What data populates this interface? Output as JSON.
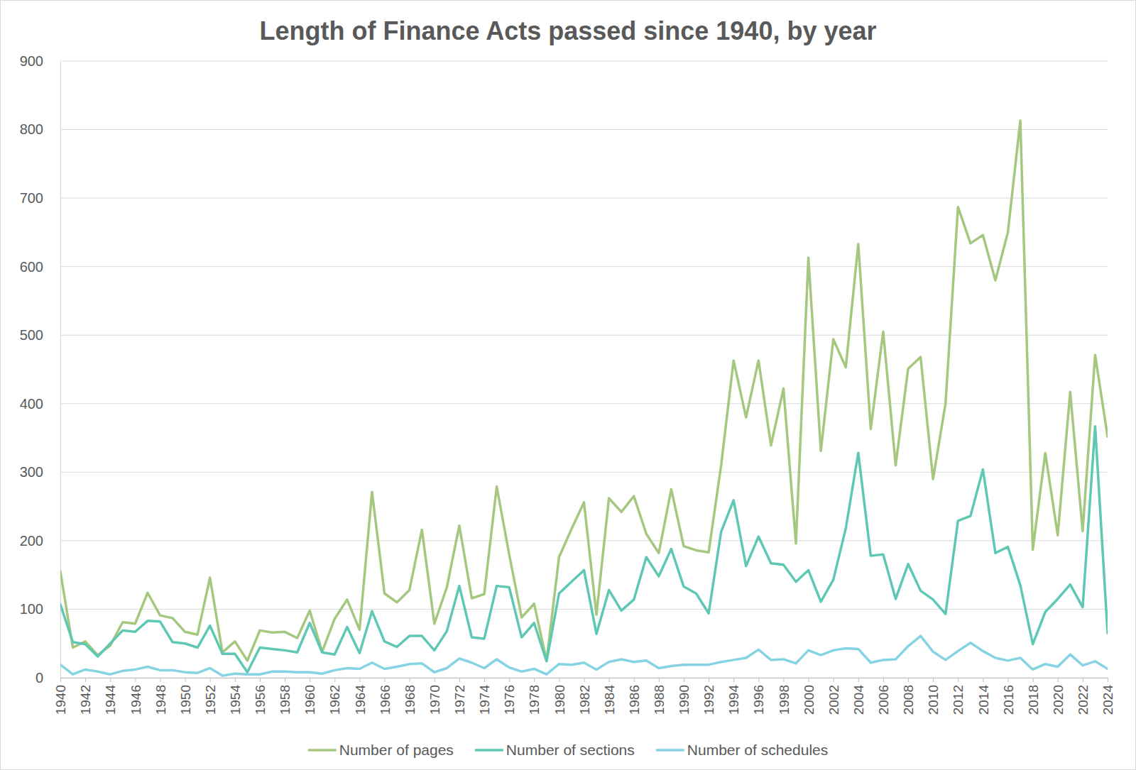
{
  "chart_data": {
    "type": "line",
    "title": "Length of Finance Acts passed since 1940, by year",
    "x": [
      1940,
      1941,
      1942,
      1943,
      1944,
      1945,
      1946,
      1947,
      1948,
      1949,
      1950,
      1951,
      1952,
      1953,
      1954,
      1955,
      1956,
      1957,
      1958,
      1959,
      1960,
      1961,
      1962,
      1963,
      1964,
      1965,
      1966,
      1967,
      1968,
      1969,
      1970,
      1971,
      1972,
      1973,
      1974,
      1975,
      1976,
      1977,
      1978,
      1979,
      1980,
      1981,
      1982,
      1983,
      1984,
      1985,
      1986,
      1987,
      1988,
      1989,
      1990,
      1991,
      1992,
      1993,
      1994,
      1995,
      1996,
      1997,
      1998,
      1999,
      2000,
      2001,
      2002,
      2003,
      2004,
      2005,
      2006,
      2007,
      2008,
      2009,
      2010,
      2011,
      2012,
      2013,
      2014,
      2015,
      2016,
      2017,
      2018,
      2019,
      2020,
      2021,
      2022,
      2023,
      2024
    ],
    "xlim": [
      1940,
      2024
    ],
    "xticks": [
      1940,
      1942,
      1944,
      1946,
      1948,
      1950,
      1952,
      1954,
      1956,
      1958,
      1960,
      1962,
      1964,
      1966,
      1968,
      1970,
      1972,
      1974,
      1976,
      1978,
      1980,
      1982,
      1984,
      1986,
      1988,
      1990,
      1992,
      1994,
      1996,
      1998,
      2000,
      2002,
      2004,
      2006,
      2008,
      2010,
      2012,
      2014,
      2016,
      2018,
      2020,
      2022,
      2024
    ],
    "ylim": [
      0,
      900
    ],
    "yticks": [
      0,
      100,
      200,
      300,
      400,
      500,
      600,
      700,
      800,
      900
    ],
    "grid": true,
    "legend": "bottom",
    "series": [
      {
        "name": "Number of pages",
        "color": "#a5c77f",
        "values": [
          155,
          44,
          53,
          33,
          47,
          81,
          79,
          124,
          91,
          87,
          67,
          63,
          146,
          37,
          53,
          25,
          69,
          66,
          67,
          58,
          98,
          38,
          86,
          114,
          70,
          271,
          123,
          110,
          128,
          216,
          79,
          132,
          222,
          116,
          122,
          279,
          180,
          88,
          108,
          25,
          176,
          217,
          256,
          92,
          262,
          242,
          265,
          210,
          182,
          275,
          192,
          186,
          183,
          310,
          463,
          380,
          463,
          339,
          422,
          196,
          613,
          331,
          494,
          453,
          633,
          363,
          505,
          310,
          451,
          468,
          290,
          400,
          687,
          634,
          646,
          580,
          650,
          813,
          187,
          328,
          208,
          417,
          214,
          471,
          352
        ]
      },
      {
        "name": "Number of sections",
        "color": "#5ec8b5",
        "values": [
          107,
          52,
          49,
          31,
          50,
          69,
          67,
          83,
          82,
          52,
          50,
          44,
          76,
          35,
          35,
          8,
          44,
          42,
          40,
          37,
          80,
          37,
          34,
          74,
          36,
          97,
          53,
          45,
          61,
          61,
          40,
          68,
          134,
          59,
          57,
          134,
          132,
          59,
          80,
          24,
          123,
          140,
          157,
          64,
          128,
          98,
          114,
          176,
          148,
          188,
          133,
          123,
          94,
          213,
          259,
          163,
          206,
          167,
          165,
          140,
          157,
          111,
          143,
          218,
          328,
          178,
          180,
          115,
          166,
          127,
          114,
          93,
          229,
          236,
          304,
          182,
          191,
          135,
          49,
          96,
          115,
          136,
          103,
          367,
          65
        ]
      },
      {
        "name": "Number of schedules",
        "color": "#86d3e3",
        "values": [
          19,
          5,
          12,
          9,
          5,
          10,
          12,
          16,
          11,
          11,
          8,
          7,
          14,
          3,
          6,
          5,
          5,
          9,
          9,
          8,
          8,
          6,
          11,
          14,
          13,
          22,
          13,
          16,
          20,
          21,
          8,
          14,
          28,
          22,
          14,
          27,
          15,
          9,
          13,
          5,
          20,
          19,
          22,
          12,
          23,
          27,
          23,
          25,
          14,
          17,
          19,
          19,
          19,
          23,
          26,
          29,
          41,
          26,
          27,
          21,
          40,
          33,
          40,
          43,
          42,
          22,
          26,
          27,
          46,
          61,
          38,
          26,
          39,
          51,
          39,
          29,
          25,
          29,
          12,
          20,
          16,
          34,
          18,
          24,
          13
        ]
      }
    ]
  }
}
